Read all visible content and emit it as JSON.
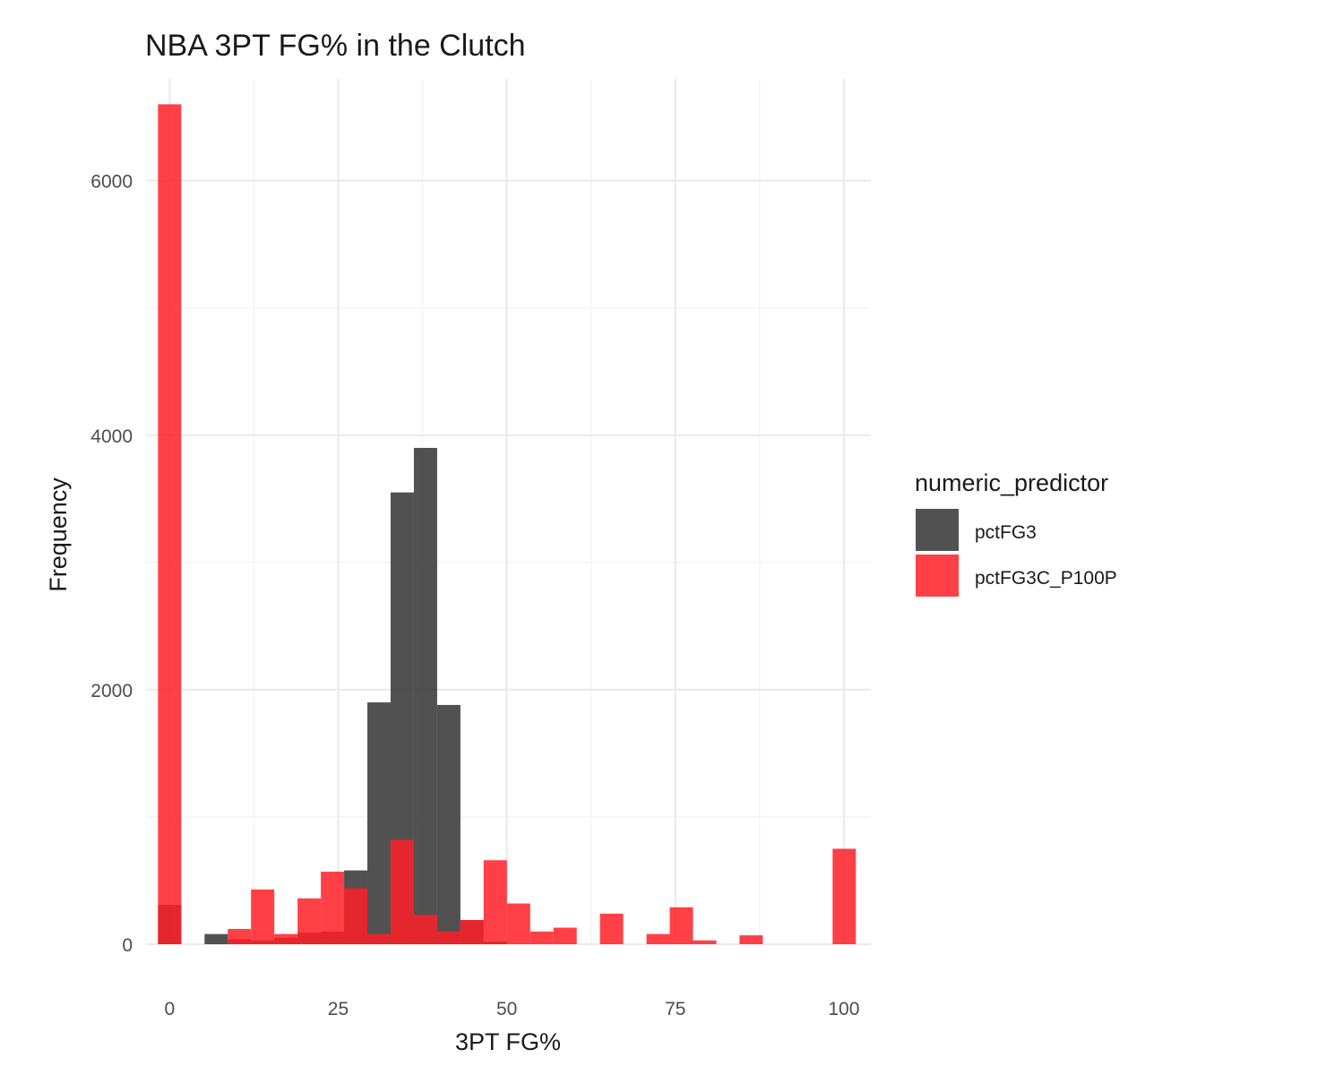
{
  "chart_data": {
    "type": "bar",
    "subtype": "overlapping-histogram",
    "title": "NBA 3PT FG% in the Clutch",
    "xlabel": "3PT FG%",
    "ylabel": "Frequency",
    "xlim": [
      -3.5,
      104
    ],
    "ylim": [
      0,
      6800
    ],
    "x_ticks": [
      0,
      25,
      50,
      75,
      100
    ],
    "y_ticks": [
      0,
      2000,
      4000,
      6000
    ],
    "bin_width": 3.45,
    "grid": true,
    "legend": {
      "title": "numeric_predictor",
      "position": "right"
    },
    "series": [
      {
        "name": "pctFG3",
        "color": "#333333",
        "bin_centers": [
          0,
          6.9,
          10.35,
          13.8,
          17.25,
          20.7,
          24.15,
          27.6,
          31.05,
          34.5,
          37.95,
          41.4,
          44.85,
          48.3
        ],
        "values": [
          310,
          80,
          40,
          30,
          50,
          90,
          100,
          580,
          1900,
          3550,
          3900,
          1880,
          190,
          20
        ]
      },
      {
        "name": "pctFG3C_P100P",
        "color": "#ff1f26",
        "bin_centers": [
          0,
          10.35,
          13.8,
          17.25,
          20.7,
          24.15,
          27.6,
          31.05,
          34.5,
          37.95,
          41.4,
          44.85,
          48.3,
          51.75,
          55.2,
          58.65,
          65.55,
          72.45,
          75.9,
          79.35,
          86.25,
          100.05
        ],
        "values": [
          6600,
          120,
          430,
          80,
          360,
          570,
          440,
          80,
          820,
          230,
          100,
          190,
          660,
          320,
          100,
          130,
          240,
          80,
          290,
          30,
          70,
          750
        ]
      }
    ]
  },
  "colors": {
    "series_1": "#333333",
    "series_2": "#ff1f26",
    "grid": "#ebebeb",
    "background": "#ffffff"
  }
}
